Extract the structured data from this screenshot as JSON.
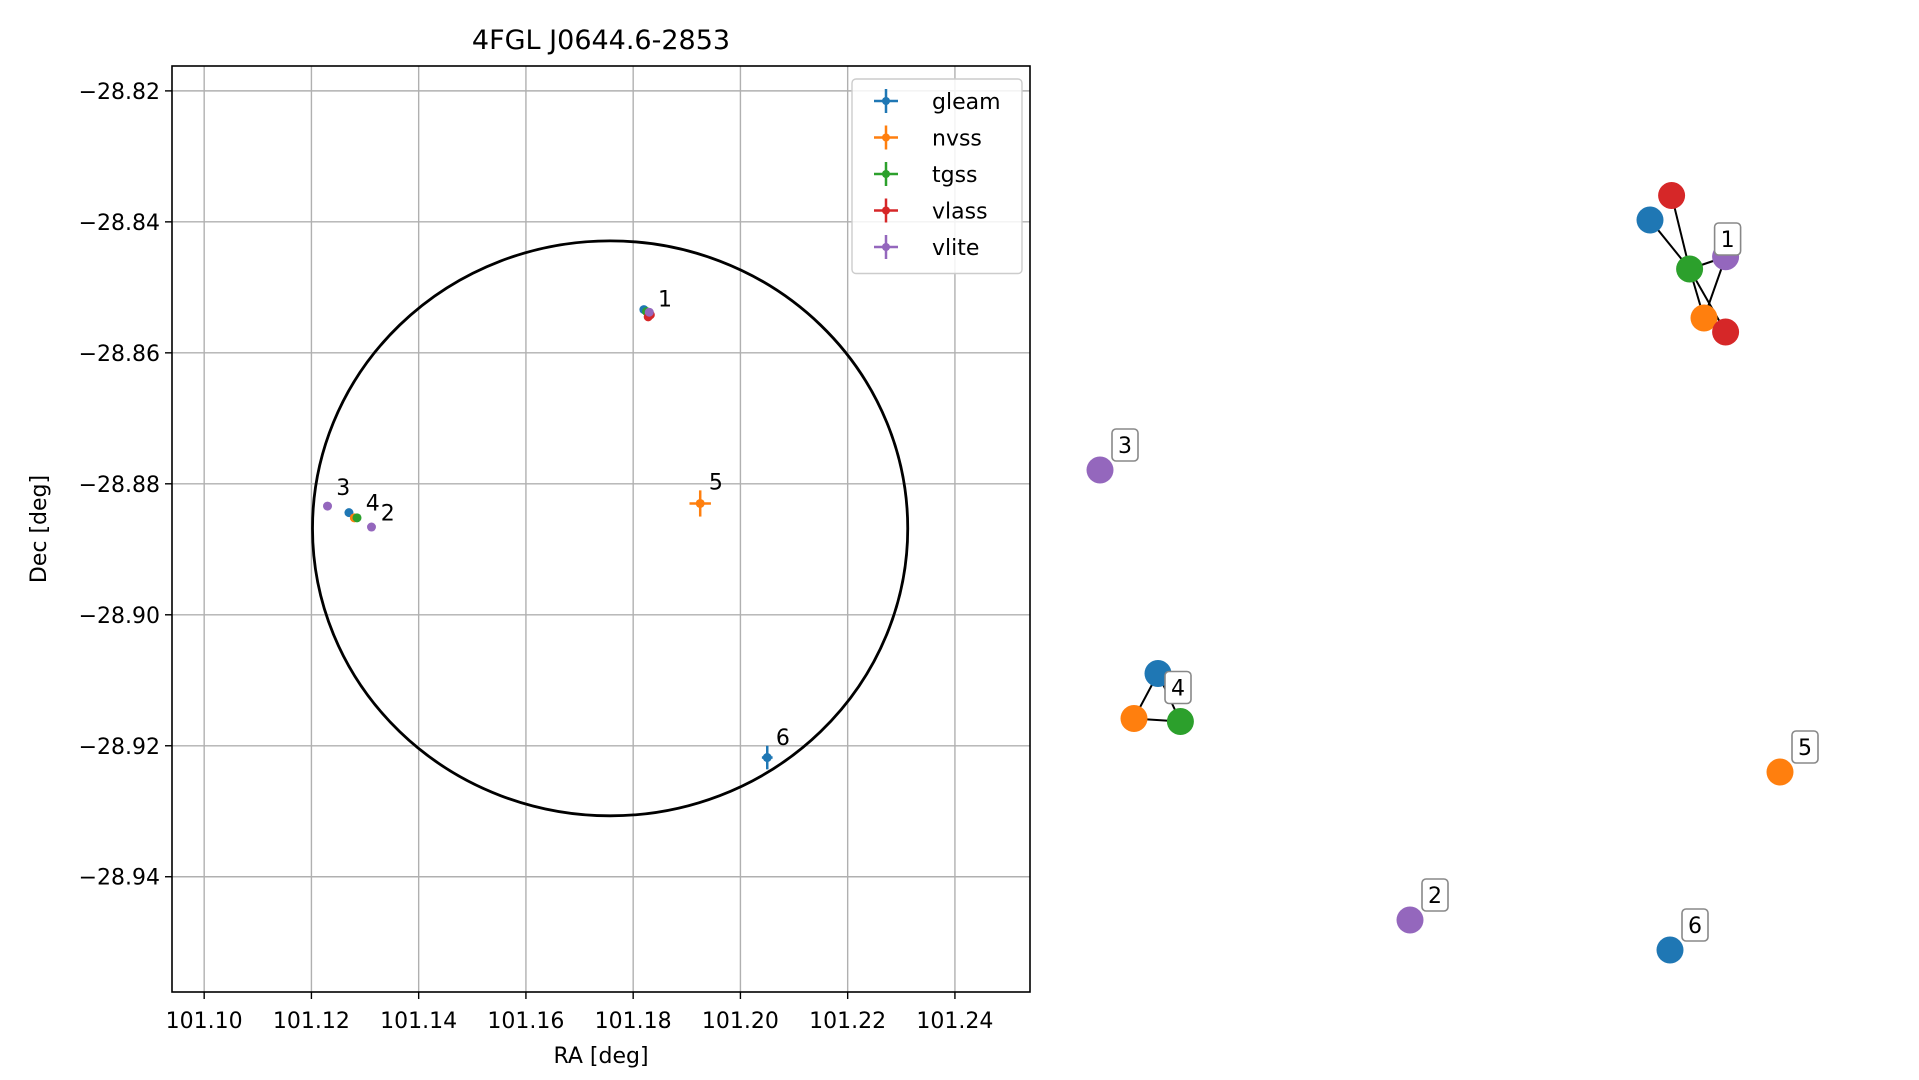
{
  "chart_data": [
    {
      "type": "scatter",
      "title": "4FGL J0644.6-2853",
      "xlabel": "RA [deg]",
      "ylabel": "Dec [deg]",
      "xlim": [
        101.094,
        101.254
      ],
      "ylim": [
        -28.9576,
        -28.8162
      ],
      "x_ticks": [
        101.1,
        101.12,
        101.14,
        101.16,
        101.18,
        101.2,
        101.22,
        101.24
      ],
      "x_tick_labels": [
        "101.10",
        "101.12",
        "101.14",
        "101.16",
        "101.18",
        "101.20",
        "101.22",
        "101.24"
      ],
      "y_ticks": [
        -28.82,
        -28.84,
        -28.86,
        -28.88,
        -28.9,
        -28.92,
        -28.94
      ],
      "y_tick_labels": [
        "−28.82",
        "−28.84",
        "−28.86",
        "−28.88",
        "−28.90",
        "−28.92",
        "−28.94"
      ],
      "grid": true,
      "legend_position": "top-right",
      "circle": {
        "center": [
          101.1757,
          -28.8868
        ],
        "r_ra": 0.0555,
        "r_dec": 0.0439,
        "color": "#000000"
      },
      "series": [
        {
          "name": "gleam",
          "color": "#1f77b4",
          "points": [
            [
              101.182,
              -28.8534
            ],
            [
              101.127,
              -28.8844
            ],
            [
              101.205,
              -28.9218
            ]
          ],
          "xerr": [
            0.0004,
            0.0004,
            0.001
          ],
          "yerr": [
            0.0003,
            0.0003,
            0.0018
          ]
        },
        {
          "name": "nvss",
          "color": "#ff7f0e",
          "points": [
            [
              101.183,
              -28.854
            ],
            [
              101.128,
              -28.8852
            ],
            [
              101.1925,
              -28.883
            ]
          ],
          "xerr": [
            0.0004,
            0.0004,
            0.002
          ],
          "yerr": [
            0.0003,
            0.0003,
            0.002
          ]
        },
        {
          "name": "tgss",
          "color": "#2ca02c",
          "points": [
            [
              101.1825,
              -28.8537
            ],
            [
              101.1285,
              -28.8852
            ]
          ],
          "xerr": [
            0.0003,
            0.0003
          ],
          "yerr": [
            0.0003,
            0.0003
          ]
        },
        {
          "name": "vlass",
          "color": "#d62728",
          "points": [
            [
              101.1828,
              -28.8545
            ],
            [
              101.1832,
              -28.8542
            ]
          ],
          "xerr": [
            0.0002,
            0.0002
          ],
          "yerr": [
            0.0002,
            0.0002
          ]
        },
        {
          "name": "vlite",
          "color": "#9467bd",
          "points": [
            [
              101.183,
              -28.8538
            ],
            [
              101.1312,
              -28.8866
            ],
            [
              101.123,
              -28.8834
            ]
          ],
          "xerr": [
            0.0004,
            0.0004,
            0.0004
          ],
          "yerr": [
            0.0003,
            0.0003,
            0.0003
          ]
        }
      ],
      "annotations": [
        {
          "text": "1",
          "x": 101.1835,
          "y": -28.8535
        },
        {
          "text": "2",
          "x": 101.1318,
          "y": -28.8862
        },
        {
          "text": "3",
          "x": 101.1235,
          "y": -28.8823
        },
        {
          "text": "4",
          "x": 101.129,
          "y": -28.8847
        },
        {
          "text": "5",
          "x": 101.193,
          "y": -28.8815
        },
        {
          "text": "6",
          "x": 101.2055,
          "y": -28.9205
        }
      ]
    },
    {
      "type": "network",
      "groups": [
        {
          "label": "1",
          "nodes": [
            {
              "color": "#1f77b4",
              "x": 0.5,
              "y": 0.76
            },
            {
              "color": "#d62728",
              "x": 0.62,
              "y": 0.9
            },
            {
              "color": "#2ca02c",
              "x": 0.72,
              "y": 0.48
            },
            {
              "color": "#9467bd",
              "x": 0.92,
              "y": 0.55
            },
            {
              "color": "#ff7f0e",
              "x": 0.8,
              "y": 0.2
            },
            {
              "color": "#d62728",
              "x": 0.92,
              "y": 0.12
            }
          ],
          "edges": [
            [
              0,
              2
            ],
            [
              1,
              2
            ],
            [
              2,
              3
            ],
            [
              2,
              4
            ],
            [
              2,
              5
            ],
            [
              3,
              4
            ]
          ]
        },
        {
          "label": "2",
          "nodes": [
            {
              "color": "#9467bd",
              "x": 0.5,
              "y": 0.5
            }
          ],
          "edges": []
        },
        {
          "label": "3",
          "nodes": [
            {
              "color": "#9467bd",
              "x": 0.5,
              "y": 0.5
            }
          ],
          "edges": []
        },
        {
          "label": "4",
          "nodes": [
            {
              "color": "#1f77b4",
              "x": 0.6,
              "y": 0.82
            },
            {
              "color": "#ff7f0e",
              "x": 0.3,
              "y": 0.22
            },
            {
              "color": "#2ca02c",
              "x": 0.88,
              "y": 0.18
            }
          ],
          "edges": [
            [
              0,
              1
            ],
            [
              0,
              2
            ],
            [
              1,
              2
            ]
          ]
        },
        {
          "label": "5",
          "nodes": [
            {
              "color": "#ff7f0e",
              "x": 0.5,
              "y": 0.5
            }
          ],
          "edges": []
        },
        {
          "label": "6",
          "nodes": [
            {
              "color": "#1f77b4",
              "x": 0.5,
              "y": 0.5
            }
          ],
          "edges": []
        }
      ]
    }
  ]
}
